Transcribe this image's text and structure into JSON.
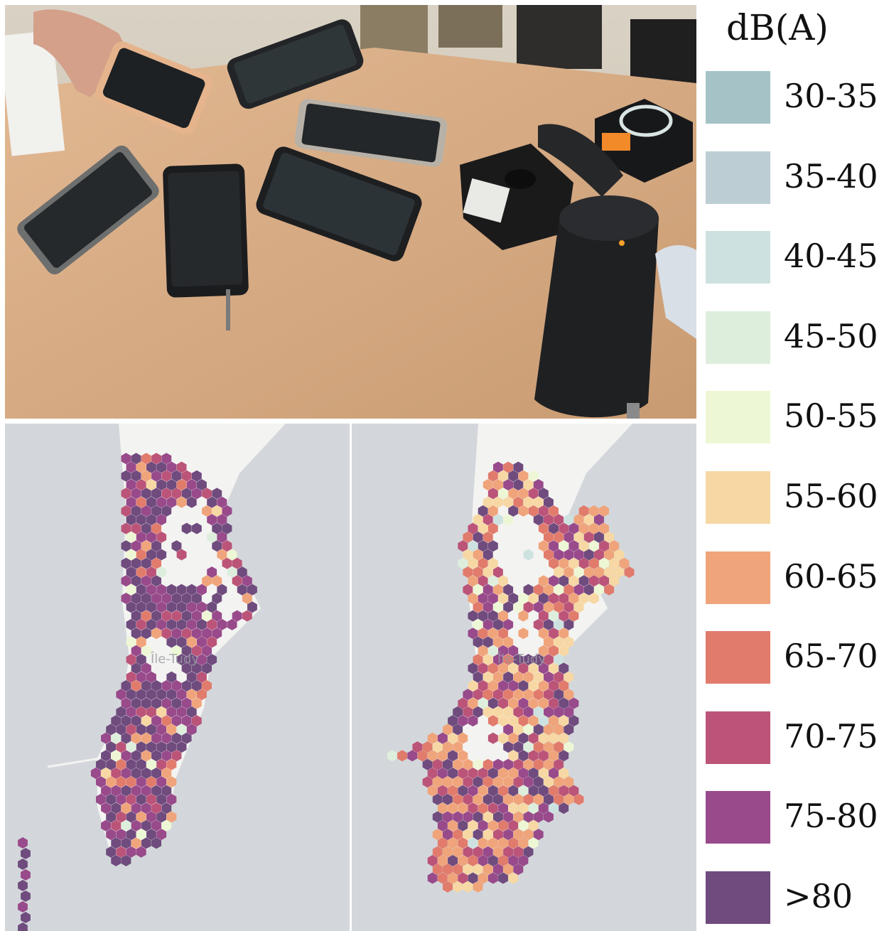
{
  "legend": {
    "title": "dB(A)",
    "items": [
      {
        "label": "30-35",
        "color": "#a5c3c6"
      },
      {
        "label": "35-40",
        "color": "#bcced4"
      },
      {
        "label": "40-45",
        "color": "#cde2e0"
      },
      {
        "label": "45-50",
        "color": "#deeedd"
      },
      {
        "label": "50-55",
        "color": "#eef7d5"
      },
      {
        "label": "55-60",
        "color": "#f7d8a4"
      },
      {
        "label": "60-65",
        "color": "#f0a47b"
      },
      {
        "label": "65-70",
        "color": "#e17b6c"
      },
      {
        "label": "70-75",
        "color": "#bb5478"
      },
      {
        "label": "75-80",
        "color": "#984a8b"
      },
      {
        "label": ">80",
        "color": "#6f4b7e"
      }
    ]
  },
  "maps": {
    "left": {
      "place_label": "Île-Tudy"
    },
    "right": {
      "place_label": "Île-Tudy"
    }
  },
  "colors": {
    "water": "#d3d7db",
    "land": "#f3f3f1",
    "table": "#d9ad85"
  }
}
